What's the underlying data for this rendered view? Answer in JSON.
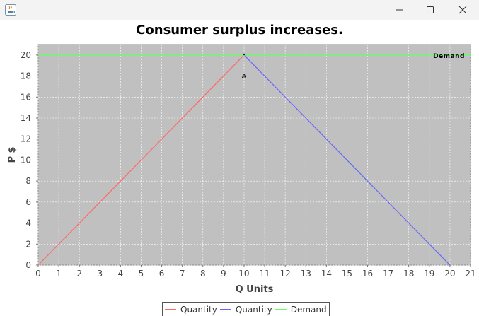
{
  "window": {
    "app_icon": "java-cup-icon",
    "controls": [
      "minimize-icon",
      "maximize-icon",
      "close-icon"
    ]
  },
  "chart_data": {
    "type": "line",
    "title": "Consumer surplus increases.",
    "xlabel": "Q Units",
    "ylabel": "P $",
    "xlim": [
      0,
      21
    ],
    "ylim": [
      0,
      21
    ],
    "x_ticks": [
      "0",
      "1",
      "2",
      "3",
      "4",
      "5",
      "6",
      "7",
      "8",
      "9",
      "10",
      "11",
      "12",
      "13",
      "14",
      "15",
      "16",
      "17",
      "18",
      "19",
      "20",
      "21"
    ],
    "y_ticks": [
      "0",
      "2",
      "4",
      "6",
      "8",
      "10",
      "12",
      "14",
      "16",
      "18",
      "20"
    ],
    "grid": true,
    "legend_position": "bottom",
    "series": [
      {
        "name": "Quantity",
        "color": "#ff6666",
        "points": [
          [
            0,
            0
          ],
          [
            10,
            20
          ]
        ]
      },
      {
        "name": "Quantity",
        "color": "#6666ff",
        "points": [
          [
            10,
            20
          ],
          [
            20,
            0
          ]
        ]
      },
      {
        "name": "Demand",
        "color": "#66ff66",
        "points": [
          [
            0,
            20
          ],
          [
            21,
            20
          ]
        ]
      }
    ],
    "annotations": [
      {
        "text": "A",
        "x": 10,
        "y": 20
      },
      {
        "text": "Demand",
        "x": 21,
        "y": 20
      }
    ]
  }
}
